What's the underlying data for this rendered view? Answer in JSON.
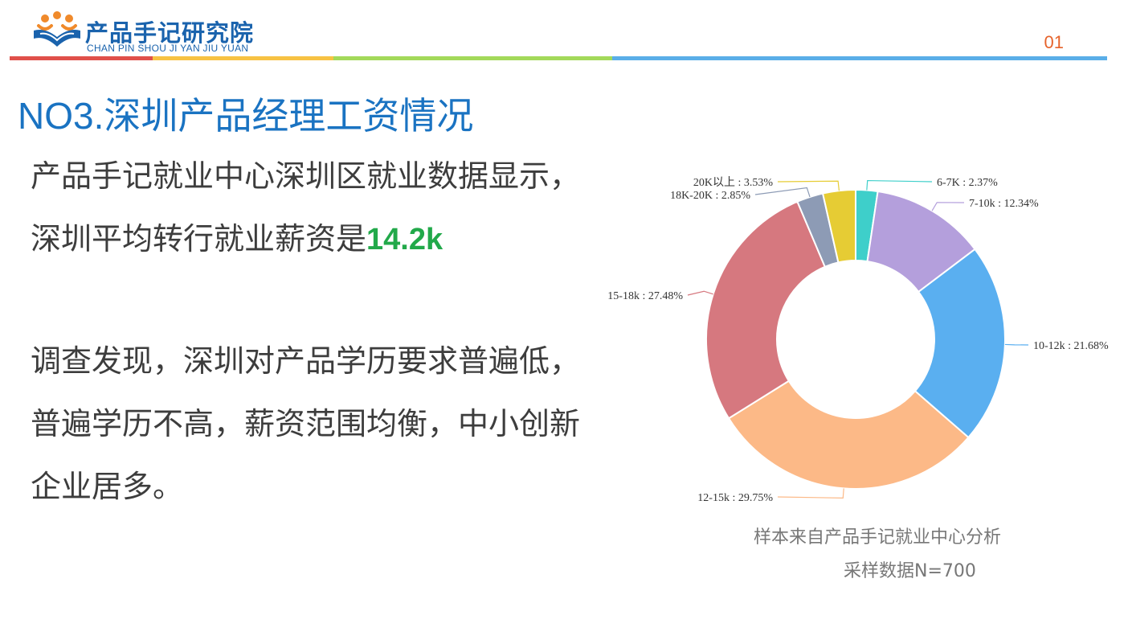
{
  "header": {
    "logo_cn": "产品手记研究院",
    "logo_en": "CHAN PIN SHOU JI YAN JIU YUAN",
    "page_number": "01",
    "bar_colors": [
      "#e0504a",
      "#f7c243",
      "#a3d95a",
      "#5aaee8"
    ]
  },
  "slide": {
    "title": "NO3.深圳产品经理工资情况",
    "para1_text": "产品手记就业中心深圳区就业数据显示，深圳平均转行就业薪资是",
    "para1_highlight": "14.2k",
    "para2_text": "调查发现，深圳对产品学历要求普遍低，普遍学历不高，薪资范围均衡，中小创新企业居多。"
  },
  "chart_data": {
    "type": "pie",
    "donut": true,
    "slices": [
      {
        "label": "6-7K",
        "value": 2.37,
        "color": "#3ecfca"
      },
      {
        "label": "7-10k",
        "value": 12.34,
        "color": "#b49fdc"
      },
      {
        "label": "10-12k",
        "value": 21.68,
        "color": "#5aaff0"
      },
      {
        "label": "12-15k",
        "value": 29.75,
        "color": "#fcb987"
      },
      {
        "label": "15-18k",
        "value": 27.48,
        "color": "#d6787f"
      },
      {
        "label": "18K-20K",
        "value": 2.85,
        "color": "#8d9bb5"
      },
      {
        "label": "20K以上",
        "value": 3.53,
        "color": "#e6cc34"
      }
    ],
    "label_texts": [
      "6-7K : 2.37%",
      "7-10k : 12.34%",
      "10-12k : 21.68%",
      "12-15k : 29.75%",
      "15-18k : 27.48%",
      "18K-20K : 2.85%",
      "20K以上 : 3.53%"
    ],
    "caption_line1": "样本来自产品手记就业中心分析",
    "caption_line2": "采样数据N=700"
  }
}
